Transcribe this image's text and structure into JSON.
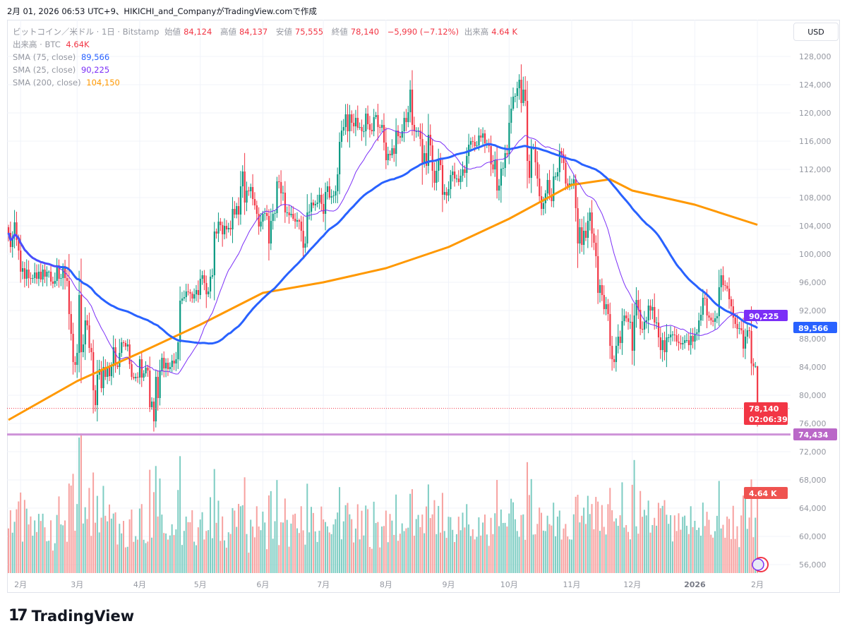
{
  "caption": "2月 01, 2026 06:53 UTC+9、HIKICHI_and_CompanyがTradingView.comで作成",
  "currency_button": "USD",
  "brand": "TradingView",
  "legend": {
    "symbol": "ビットコイン／米ドル · 1日 · Bitstamp",
    "open_label": "始値",
    "open": "84,124",
    "high_label": "高値",
    "high": "84,137",
    "low_label": "安値",
    "low": "75,555",
    "close_label": "終値",
    "close": "78,140",
    "change": "−5,990 (−7.12%)",
    "volume_label": "出来高",
    "volume": "4.64 K",
    "volume_series_label": "出来高 · BTC",
    "volume_series_value": "4.64K",
    "sma75_label": "SMA (75, close)",
    "sma75_value": "89,566",
    "sma25_label": "SMA (25, close)",
    "sma25_value": "90,225",
    "sma200_label": "SMA (200, close)",
    "sma200_value": "104,150"
  },
  "price_tags": {
    "sma25": "90,225",
    "sma75": "89,566",
    "last_price": "78,140",
    "countdown": "02:06:39",
    "horizontal_line": "74,434",
    "volume": "4.64 K"
  },
  "colors": {
    "up": "#089981",
    "down": "#f23645",
    "volume_up": "#7ecdc3",
    "volume_down": "#f7a19f",
    "sma25": "#7b2ff7",
    "sma75": "#2962ff",
    "sma200": "#ff9800",
    "hline": "#ce93d8"
  },
  "chart_data": {
    "type": "candlestick",
    "yaxis_ticks": [
      "128,000",
      "124,000",
      "120,000",
      "116,000",
      "112,000",
      "108,000",
      "104,000",
      "100,000",
      "96,000",
      "92,000",
      "88,000",
      "84,000",
      "80,000",
      "76,000",
      "72,000",
      "68,000",
      "64,000",
      "60,000",
      "56,000"
    ],
    "ylim": [
      54000,
      130000
    ],
    "xaxis_ticks": [
      "2月",
      "3月",
      "4月",
      "5月",
      "6月",
      "7月",
      "8月",
      "9月",
      "10月",
      "11月",
      "12月",
      "2026",
      "2月"
    ],
    "horizontal_line": 74434,
    "last_candle": {
      "open": 84124,
      "high": 84137,
      "low": 75555,
      "close": 78140,
      "volume_k": 4.64
    },
    "daily_closes": [
      {
        "month": "2025-01",
        "first_day": 26,
        "closes": [
          103000,
          101000,
          102500,
          104500,
          102000,
          100500
        ]
      },
      {
        "month": "2025-02",
        "first_day": 1,
        "closes": [
          97500,
          98000,
          96500,
          97800,
          96600,
          96500,
          96600,
          97400,
          96500,
          97500,
          96400,
          97800,
          96800,
          97500,
          97500,
          96100,
          95800,
          96200,
          98400,
          96500,
          96600,
          98300,
          96600,
          96200,
          91500,
          88700,
          84700,
          84300
        ]
      },
      {
        "month": "2025-03",
        "first_day": 1,
        "closes": [
          86000,
          94200,
          86100,
          87200,
          90600,
          89900,
          86700,
          86100,
          80700,
          78600,
          82900,
          83700,
          81000,
          84000,
          82600,
          84000,
          82700,
          84100,
          86800,
          84200,
          84000,
          86000,
          87500,
          87400,
          86900,
          87200,
          84400,
          82600,
          82400,
          82600,
          82500
        ]
      },
      {
        "month": "2025-04",
        "first_day": 1,
        "closes": [
          85100,
          82500,
          83100,
          83900,
          83500,
          78300,
          79100,
          76300,
          82600,
          79600,
          83400,
          85300,
          83800,
          84600,
          83700,
          84000,
          84900,
          84500,
          85100,
          87500,
          93400,
          93700,
          93900,
          94700,
          94600,
          94400,
          93700,
          94300,
          94900,
          94200
        ]
      },
      {
        "month": "2025-05",
        "first_day": 1,
        "closes": [
          96500,
          97000,
          95900,
          94300,
          94700,
          96800,
          97000,
          103200,
          102900,
          104600,
          104100,
          102800,
          104000,
          103500,
          103700,
          103500,
          106400,
          105600,
          106800,
          105600,
          109600,
          111700,
          107300,
          109000,
          108900,
          109500,
          107800,
          106900,
          105700,
          103900,
          104600
        ]
      },
      {
        "month": "2025-06",
        "first_day": 1,
        "closes": [
          105700,
          105800,
          105400,
          101500,
          104700,
          105700,
          105800,
          110300,
          110200,
          108600,
          108700,
          105900,
          105900,
          105500,
          105700,
          105000,
          104600,
          104800,
          104600,
          103300,
          100900,
          101500,
          105900,
          106000,
          107300,
          106900,
          107100,
          107300,
          108400,
          107100
        ]
      },
      {
        "month": "2025-07",
        "first_day": 1,
        "closes": [
          105700,
          108800,
          109600,
          108000,
          108200,
          108300,
          108900,
          111300,
          115900,
          117500,
          118000,
          119800,
          117400,
          119800,
          118600,
          118100,
          119300,
          117900,
          118000,
          117400,
          117400,
          119900,
          118400,
          117600,
          117400,
          119400,
          119700,
          118000,
          117900,
          118300,
          115800
        ]
      },
      {
        "month": "2025-08",
        "first_day": 1,
        "closes": [
          113300,
          114200,
          114000,
          115000,
          114200,
          117500,
          116700,
          116500,
          117400,
          119300,
          118700,
          120100,
          123300,
          118300,
          117400,
          117400,
          117500,
          116300,
          112900,
          114300,
          112500,
          116900,
          115400,
          111800,
          110100,
          111800,
          113400,
          112600,
          108400,
          108800,
          108300
        ]
      },
      {
        "month": "2025-09",
        "first_day": 1,
        "closes": [
          109200,
          111200,
          111700,
          110700,
          110700,
          110200,
          111100,
          112000,
          111500,
          113900,
          115500,
          116000,
          115900,
          115300,
          115400,
          116800,
          116500,
          117100,
          115700,
          115700,
          115300,
          112700,
          112000,
          113300,
          109000,
          109700,
          112100,
          112200,
          114300,
          114100
        ]
      },
      {
        "month": "2025-10",
        "first_day": 1,
        "closes": [
          118600,
          120600,
          122300,
          122400,
          123500,
          124700,
          121400,
          123300,
          121700,
          113200,
          110800,
          115200,
          115200,
          113000,
          110700,
          108200,
          106400,
          107200,
          108600,
          110500,
          108400,
          107500,
          111000,
          111000,
          111600,
          114600,
          114100,
          112900,
          110000,
          109600,
          110000
        ]
      },
      {
        "month": "2025-11",
        "first_day": 1,
        "closes": [
          110000,
          110600,
          106500,
          101500,
          103800,
          101300,
          103300,
          102300,
          104700,
          105900,
          102900,
          101600,
          99700,
          94500,
          95600,
          94200,
          92200,
          92900,
          91500,
          87000,
          85100,
          84700,
          87000,
          88300,
          87400,
          90500,
          91300,
          90900,
          90400,
          90400
        ]
      },
      {
        "month": "2025-12",
        "first_day": 1,
        "closes": [
          86300,
          91300,
          93500,
          92100,
          89400,
          89300,
          90400,
          90600,
          92700,
          92000,
          92500,
          90300,
          90300,
          88200,
          86400,
          87800,
          86100,
          88200,
          88200,
          88600,
          88600,
          88500,
          87600,
          87400,
          87200,
          87400,
          87800,
          87800,
          87100,
          88400,
          87600
        ]
      },
      {
        "month": "2026-01",
        "first_day": 1,
        "closes": [
          88700,
          88900,
          90600,
          91400,
          93800,
          93700,
          91300,
          91000,
          90600,
          90400,
          90900,
          91200,
          95300,
          97000,
          95600,
          95500,
          95100,
          93600,
          92600,
          91000,
          90100,
          89400,
          89500,
          89200,
          86600,
          88300,
          89200,
          89100,
          84500,
          84100,
          84124
        ]
      },
      {
        "month": "2026-02",
        "first_day": 1,
        "closes": [
          78140
        ]
      }
    ],
    "sma200_monthly": [
      {
        "date": "2025-01-26",
        "value": 76500
      },
      {
        "date": "2025-03-01",
        "value": 82000
      },
      {
        "date": "2025-04-01",
        "value": 86000
      },
      {
        "date": "2025-05-01",
        "value": 90000
      },
      {
        "date": "2025-06-01",
        "value": 94500
      },
      {
        "date": "2025-07-01",
        "value": 96000
      },
      {
        "date": "2025-08-01",
        "value": 98000
      },
      {
        "date": "2025-09-01",
        "value": 101000
      },
      {
        "date": "2025-10-01",
        "value": 105000
      },
      {
        "date": "2025-11-01",
        "value": 109800
      },
      {
        "date": "2025-11-20",
        "value": 110600
      },
      {
        "date": "2025-12-01",
        "value": 109000
      },
      {
        "date": "2026-01-01",
        "value": 107000
      },
      {
        "date": "2026-02-01",
        "value": 104150
      }
    ]
  }
}
